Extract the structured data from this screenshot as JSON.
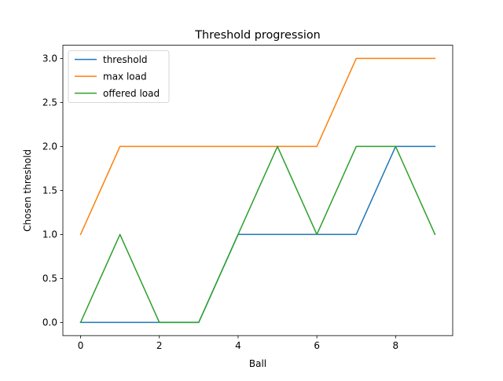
{
  "chart_data": {
    "type": "line",
    "title": "Threshold progression",
    "xlabel": "Ball",
    "ylabel": "Chosen threshold",
    "x": [
      0,
      1,
      2,
      3,
      4,
      5,
      6,
      7,
      8,
      9
    ],
    "xlim": [
      -0.45,
      9.45
    ],
    "ylim": [
      -0.15,
      3.15
    ],
    "xticks": [
      0,
      2,
      4,
      6,
      8
    ],
    "xtick_labels": [
      "0",
      "2",
      "4",
      "6",
      "8"
    ],
    "yticks": [
      0,
      0.5,
      1,
      1.5,
      2,
      2.5,
      3
    ],
    "ytick_labels": [
      "0.0",
      "0.5",
      "1.0",
      "1.5",
      "2.0",
      "2.5",
      "3.0"
    ],
    "grid": false,
    "legend_position": "upper-left",
    "series": [
      {
        "name": "threshold",
        "color": "#1f77b4",
        "values": [
          0,
          0,
          0,
          0,
          1,
          1,
          1,
          1,
          2,
          2
        ]
      },
      {
        "name": "max load",
        "color": "#ff7f0e",
        "values": [
          1,
          2,
          2,
          2,
          2,
          2,
          2,
          3,
          3,
          3
        ]
      },
      {
        "name": "offered load",
        "color": "#2ca02c",
        "values": [
          0,
          1,
          0,
          0,
          1,
          2,
          1,
          2,
          2,
          1
        ]
      }
    ]
  }
}
